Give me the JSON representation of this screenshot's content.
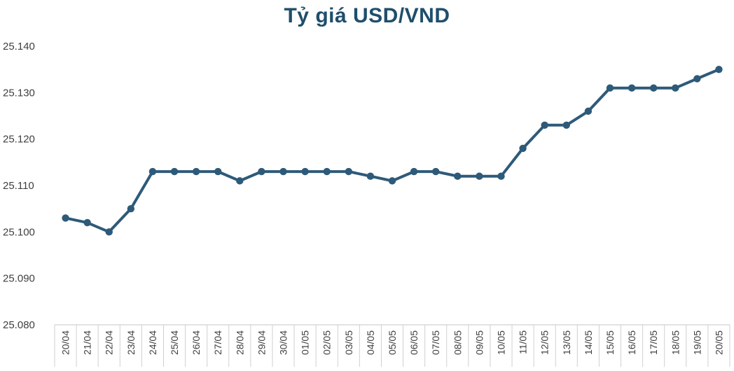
{
  "chart_data": {
    "type": "line",
    "title": "Tỷ giá USD/VND",
    "xlabel": "",
    "ylabel": "",
    "ylim": [
      25080,
      25140
    ],
    "ytick_values": [
      25080,
      25090,
      25100,
      25110,
      25120,
      25130,
      25140
    ],
    "ytick_labels": [
      "25.080",
      "25.090",
      "25.100",
      "25.110",
      "25.120",
      "25.130",
      "25.140"
    ],
    "categories": [
      "20/04",
      "21/04",
      "22/04",
      "23/04",
      "24/04",
      "25/04",
      "26/04",
      "27/04",
      "28/04",
      "29/04",
      "30/04",
      "01/05",
      "02/05",
      "03/05",
      "04/05",
      "05/05",
      "06/05",
      "07/05",
      "08/05",
      "09/05",
      "10/05",
      "11/05",
      "12/05",
      "13/05",
      "14/05",
      "15/05",
      "16/05",
      "17/05",
      "18/05",
      "19/05",
      "20/05"
    ],
    "series": [
      {
        "values": [
          25103,
          25102,
          25100,
          25105,
          25113,
          25113,
          25113,
          25113,
          25111,
          25113,
          25113,
          25113,
          25113,
          25113,
          25112,
          25111,
          25113,
          25113,
          25112,
          25112,
          25112,
          25118,
          25123,
          25123,
          25126,
          25131,
          25131,
          25131,
          25131,
          25133,
          25135
        ],
        "color": "#2e5a79"
      }
    ],
    "grid": false,
    "legend": "none"
  }
}
